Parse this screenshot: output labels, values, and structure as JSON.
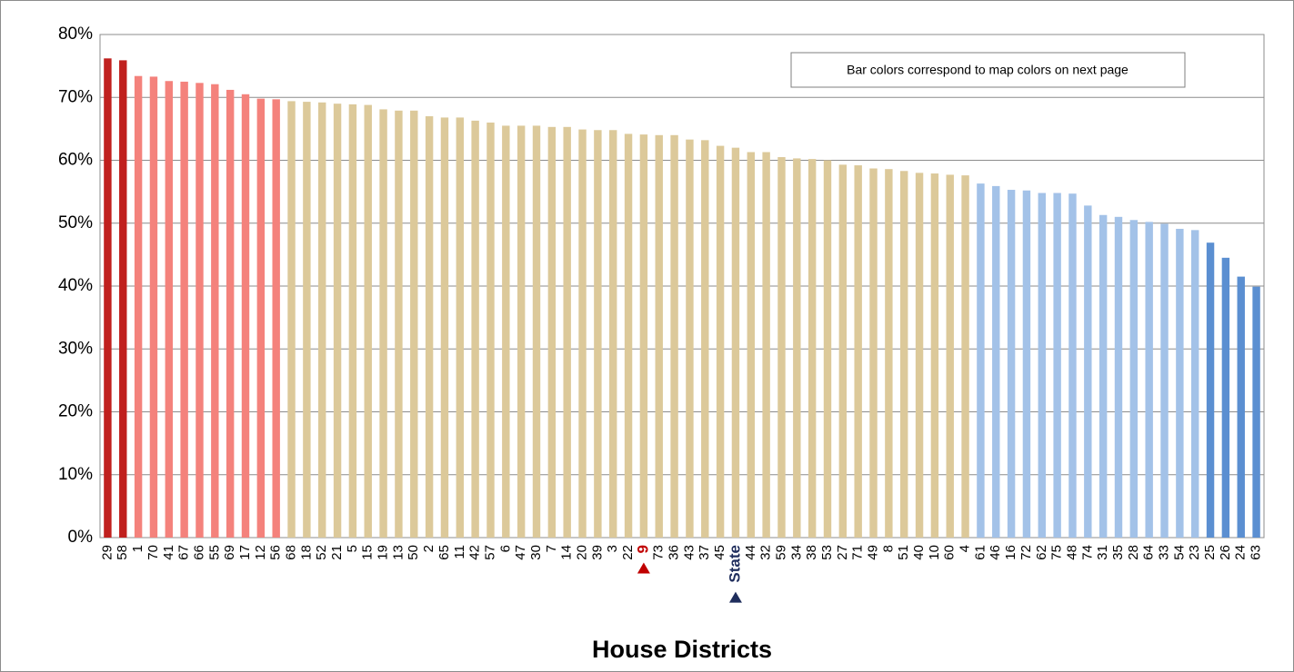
{
  "chart_data": {
    "type": "bar",
    "x_label": "House Districts",
    "annotation": "Bar colors correspond to map colors on next page",
    "categories": [
      "29",
      "58",
      "1",
      "70",
      "41",
      "67",
      "66",
      "55",
      "69",
      "17",
      "12",
      "56",
      "68",
      "18",
      "52",
      "21",
      "5",
      "15",
      "19",
      "13",
      "50",
      "2",
      "65",
      "11",
      "42",
      "57",
      "6",
      "47",
      "30",
      "7",
      "14",
      "20",
      "39",
      "3",
      "22",
      "9",
      "73",
      "36",
      "43",
      "37",
      "45",
      "State",
      "44",
      "32",
      "59",
      "34",
      "38",
      "53",
      "27",
      "71",
      "49",
      "8",
      "51",
      "40",
      "10",
      "60",
      "4",
      "61",
      "46",
      "16",
      "72",
      "62",
      "75",
      "48",
      "74",
      "31",
      "35",
      "28",
      "64",
      "33",
      "54",
      "23",
      "25",
      "26",
      "24",
      "63"
    ],
    "values": [
      76.2,
      75.9,
      73.4,
      73.3,
      72.6,
      72.5,
      72.3,
      72.1,
      71.2,
      70.5,
      69.8,
      69.7,
      69.4,
      69.3,
      69.2,
      69.0,
      68.9,
      68.8,
      68.1,
      67.9,
      67.9,
      67.0,
      66.8,
      66.8,
      66.3,
      66.0,
      65.5,
      65.5,
      65.5,
      65.3,
      65.3,
      64.9,
      64.8,
      64.8,
      64.2,
      64.1,
      64.0,
      64.0,
      63.3,
      63.2,
      62.3,
      62.0,
      61.3,
      61.3,
      60.5,
      60.3,
      60.2,
      60.0,
      59.3,
      59.2,
      58.7,
      58.6,
      58.3,
      58.0,
      57.9,
      57.7,
      57.6,
      56.3,
      55.9,
      55.3,
      55.2,
      54.8,
      54.8,
      54.7,
      52.8,
      51.3,
      51.0,
      50.5,
      50.2,
      49.9,
      49.1,
      48.9,
      46.9,
      44.5,
      41.5,
      39.9
    ],
    "colors": [
      "#c0201e",
      "#c0201e",
      "#f4827c",
      "#f4827c",
      "#f4827c",
      "#f4827c",
      "#f4827c",
      "#f4827c",
      "#f4827c",
      "#f4827c",
      "#f4827c",
      "#f4827c",
      "#dcc99a",
      "#dcc99a",
      "#dcc99a",
      "#dcc99a",
      "#dcc99a",
      "#dcc99a",
      "#dcc99a",
      "#dcc99a",
      "#dcc99a",
      "#dcc99a",
      "#dcc99a",
      "#dcc99a",
      "#dcc99a",
      "#dcc99a",
      "#dcc99a",
      "#dcc99a",
      "#dcc99a",
      "#dcc99a",
      "#dcc99a",
      "#dcc99a",
      "#dcc99a",
      "#dcc99a",
      "#dcc99a",
      "#dcc99a",
      "#dcc99a",
      "#dcc99a",
      "#dcc99a",
      "#dcc99a",
      "#dcc99a",
      "#dcc99a",
      "#dcc99a",
      "#dcc99a",
      "#dcc99a",
      "#dcc99a",
      "#dcc99a",
      "#dcc99a",
      "#dcc99a",
      "#dcc99a",
      "#dcc99a",
      "#dcc99a",
      "#dcc99a",
      "#dcc99a",
      "#dcc99a",
      "#dcc99a",
      "#dcc99a",
      "#a3c2e8",
      "#a3c2e8",
      "#a3c2e8",
      "#a3c2e8",
      "#a3c2e8",
      "#a3c2e8",
      "#a3c2e8",
      "#a3c2e8",
      "#a3c2e8",
      "#a3c2e8",
      "#a3c2e8",
      "#a3c2e8",
      "#a3c2e8",
      "#a3c2e8",
      "#a3c2e8",
      "#5b8fd1",
      "#5b8fd1",
      "#5b8fd1",
      "#5b8fd1"
    ],
    "highlights": [
      {
        "index": 35,
        "color": "#c00000"
      },
      {
        "index": 41,
        "color": "#1f2d5c"
      }
    ],
    "ylim": [
      0,
      80
    ],
    "yticks": [
      {
        "value": 0,
        "label": "0%"
      },
      {
        "value": 10,
        "label": "10%"
      },
      {
        "value": 20,
        "label": "20%"
      },
      {
        "value": 30,
        "label": "30%"
      },
      {
        "value": 40,
        "label": "40%"
      },
      {
        "value": 50,
        "label": "50%"
      },
      {
        "value": 60,
        "label": "60%"
      },
      {
        "value": 70,
        "label": "70%"
      },
      {
        "value": 80,
        "label": "80%"
      }
    ],
    "grid": true
  }
}
